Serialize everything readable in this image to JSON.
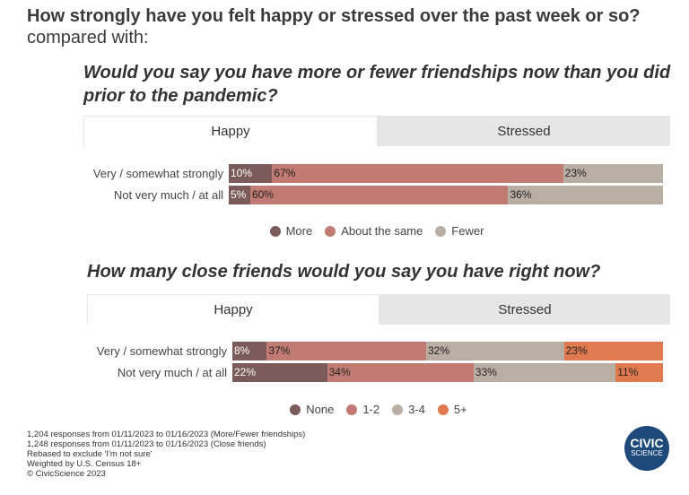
{
  "title_bold": "How strongly have you felt happy or stressed over the past week or so?",
  "title_rest": " compared with:",
  "colors": {
    "more": "#7a5b59",
    "same": "#c27b73",
    "fewer": "#b9aea4",
    "none": "#7a5b59",
    "one_two": "#c27b73",
    "three_four": "#b9aea4",
    "five_plus": "#e07a4e"
  },
  "chart_data": [
    {
      "type": "bar",
      "stacked": true,
      "orientation": "horizontal",
      "title": "Would you say you have more or fewer friendships now than you did prior to the pandemic?",
      "tabs": [
        "Happy",
        "Stressed"
      ],
      "active_tab": "Happy",
      "categories": [
        "Very / somewhat strongly",
        "Not very much / at all"
      ],
      "series": [
        {
          "name": "More",
          "values": [
            10,
            5
          ],
          "color": "#7a5b59",
          "label_color": "#fff"
        },
        {
          "name": "About the same",
          "values": [
            67,
            60
          ],
          "color": "#c27b73",
          "label_color": "#222"
        },
        {
          "name": "Fewer",
          "values": [
            23,
            36
          ],
          "color": "#b9aea4",
          "label_color": "#222"
        }
      ],
      "legend": "bottom",
      "unit": "%"
    },
    {
      "type": "bar",
      "stacked": true,
      "orientation": "horizontal",
      "title": "How many close friends would you say you have right now?",
      "tabs": [
        "Happy",
        "Stressed"
      ],
      "active_tab": "Happy",
      "categories": [
        "Very / somewhat strongly",
        "Not very much / at all"
      ],
      "series": [
        {
          "name": "None",
          "values": [
            8,
            22
          ],
          "color": "#7a5b59",
          "label_color": "#fff"
        },
        {
          "name": "1-2",
          "values": [
            37,
            34
          ],
          "color": "#c27b73",
          "label_color": "#222"
        },
        {
          "name": "3-4",
          "values": [
            32,
            33
          ],
          "color": "#b9aea4",
          "label_color": "#222"
        },
        {
          "name": "5+",
          "values": [
            23,
            11
          ],
          "color": "#e07a4e",
          "label_color": "#222"
        }
      ],
      "legend": "bottom",
      "unit": "%"
    }
  ],
  "notes": [
    "1,204 responses from 01/11/2023 to 01/16/2023 (More/Fewer friendships)",
    "1,248 responses from 01/11/2023 to 01/16/2023 (Close friends)",
    "Rebased to exclude 'I'm not sure'",
    "Weighted by U.S. Census 18+",
    "© CivicScience 2023"
  ],
  "logo": {
    "line1": "CIVIC",
    "line2": "SCIENCE"
  }
}
